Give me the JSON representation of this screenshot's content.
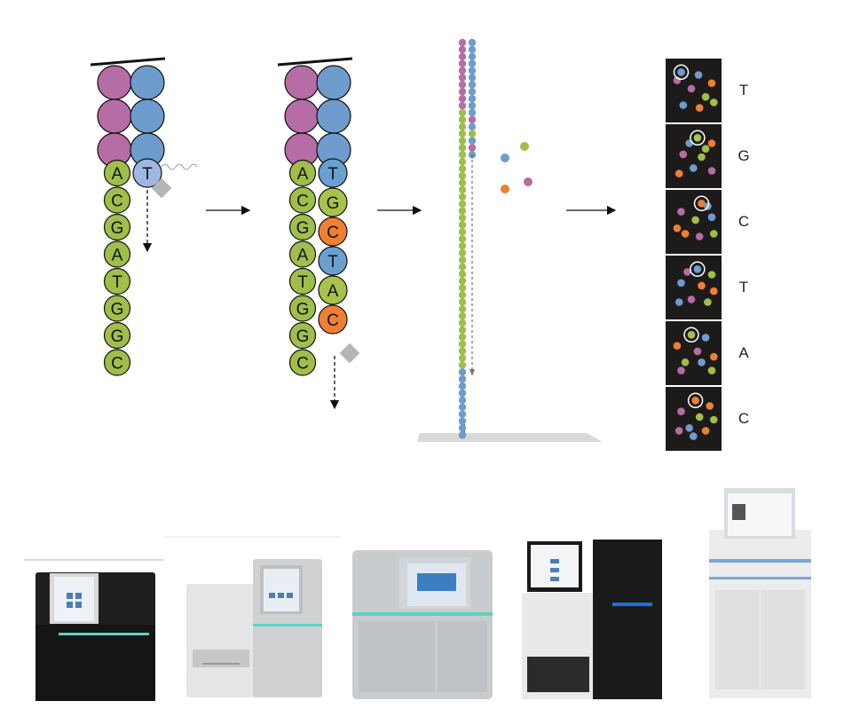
{
  "colors": {
    "A": "#a8c24a",
    "C": "#ee7f33",
    "G": "#a8c24a",
    "T": "#6aa0d0",
    "magenta": "#b66ca4",
    "blue": "#6d9ccd",
    "tpl_blue": "#9fb8df",
    "cross": "#b24d97",
    "green_dot": "#a0be4a",
    "panel_bg": "#1d1b1a",
    "grey": "#bbbbbb"
  },
  "panel1": {
    "template_bases": [
      "A",
      "C",
      "G",
      "A",
      "T",
      "G",
      "G",
      "C"
    ],
    "incoming_base": "T"
  },
  "panel2": {
    "template_bases": [
      "A",
      "C",
      "G",
      "A",
      "T",
      "G",
      "G",
      "C"
    ],
    "synthesized_bases": [
      "T",
      "G",
      "C",
      "T",
      "A",
      "C"
    ],
    "synthesized_colors": [
      "T",
      "G",
      "C",
      "T",
      "A",
      "C"
    ]
  },
  "panel4": {
    "reads": [
      "T",
      "G",
      "C",
      "T",
      "A",
      "C"
    ]
  },
  "instruments": [
    {
      "name": "instrument-1"
    },
    {
      "name": "instrument-2"
    },
    {
      "name": "instrument-3"
    },
    {
      "name": "instrument-4"
    },
    {
      "name": "instrument-5"
    }
  ]
}
